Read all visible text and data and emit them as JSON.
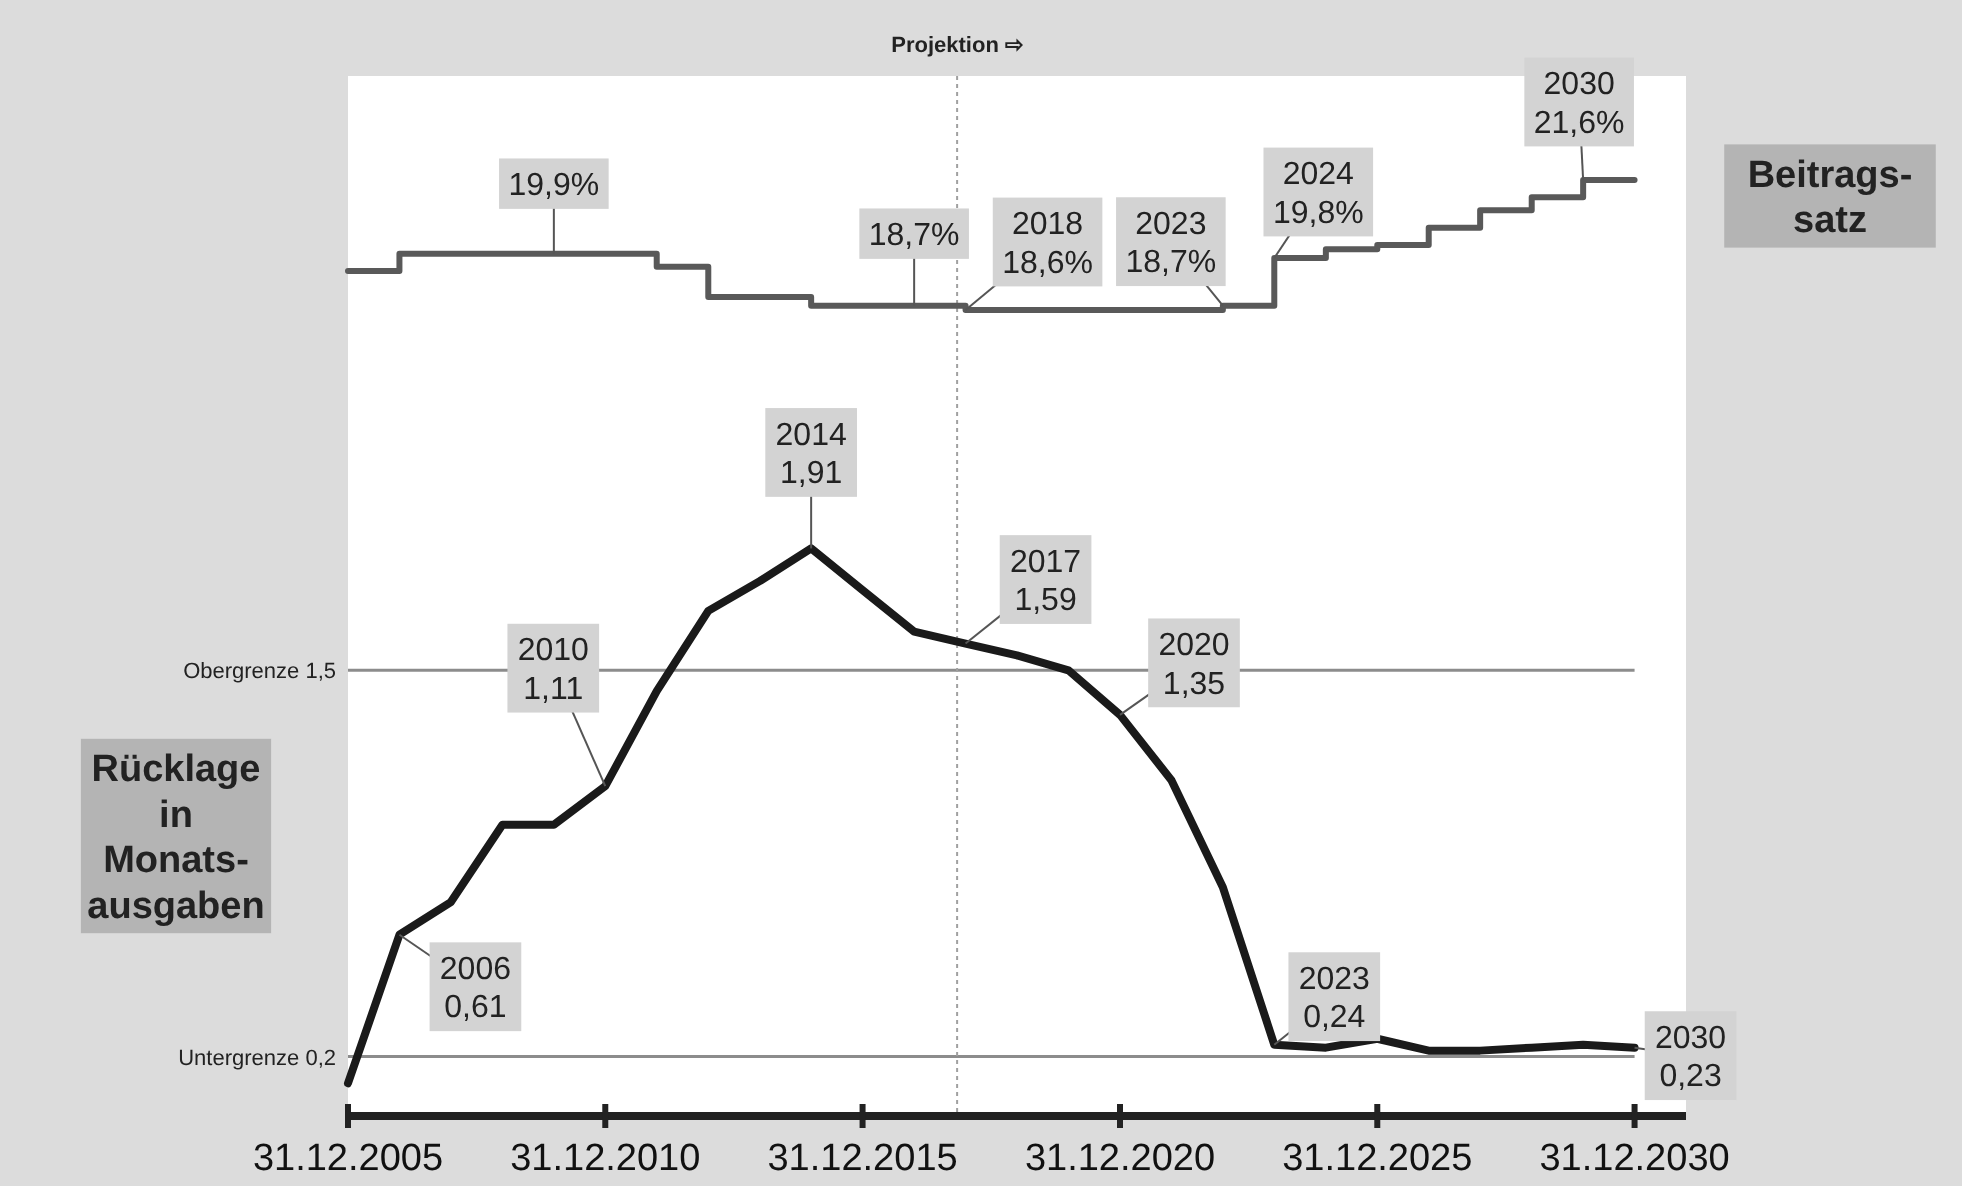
{
  "chart_data": {
    "type": "line",
    "ylabel": "Rücklage\nin\nMonats-\nausgaben",
    "y2label": "Beitrags-\nsatz",
    "x": [
      "2005-12-31",
      "2006-12-31",
      "2007-12-31",
      "2008-12-31",
      "2009-12-31",
      "2010-12-31",
      "2011-12-31",
      "2012-12-31",
      "2013-12-31",
      "2014-12-31",
      "2015-12-31",
      "2016-12-31",
      "2017-12-31",
      "2018-12-31",
      "2019-12-31",
      "2020-12-31",
      "2021-12-31",
      "2022-12-31",
      "2023-12-31",
      "2024-12-31",
      "2025-12-31",
      "2026-12-31",
      "2027-12-31",
      "2028-12-31",
      "2029-12-31",
      "2030-12-31"
    ],
    "xlim": [
      "2005-12-31",
      "2031-12-31"
    ],
    "xticks": [
      {
        "value": "2005-12-31",
        "label": "31.12.2005"
      },
      {
        "value": "2010-12-31",
        "label": "31.12.2010"
      },
      {
        "value": "2015-12-31",
        "label": "31.12.2015"
      },
      {
        "value": "2020-12-31",
        "label": "31.12.2020"
      },
      {
        "value": "2025-12-31",
        "label": "31.12.2025"
      },
      {
        "value": "2030-12-31",
        "label": "31.12.2030"
      }
    ],
    "ylim": [
      0,
      3.5
    ],
    "y2lim": [
      0,
      24
    ],
    "tick_labels": "x",
    "grid": false,
    "series": [
      {
        "color": "#1a1a1a",
        "values": [
          0.11,
          0.61,
          0.72,
          0.98,
          0.98,
          1.11,
          1.43,
          1.7,
          1.8,
          1.91,
          1.77,
          1.63,
          1.59,
          1.55,
          1.5,
          1.35,
          1.13,
          0.77,
          0.24,
          0.23,
          0.26,
          0.22,
          0.22,
          0.23,
          0.24,
          0.23
        ],
        "value_labels": [
          null,
          "2006\n0,61",
          null,
          null,
          null,
          "2010\n1,11",
          null,
          null,
          null,
          "2014\n1,91",
          null,
          null,
          "2017\n1,59",
          null,
          null,
          "2020\n1,35",
          null,
          null,
          "2023\n0,24",
          null,
          null,
          null,
          null,
          null,
          null,
          "2030\n0,23"
        ]
      },
      {
        "type": "step",
        "axis": "y2",
        "color": "#595959",
        "values": [
          19.5,
          19.9,
          19.9,
          19.9,
          19.9,
          19.9,
          19.6,
          18.9,
          18.9,
          18.7,
          18.7,
          18.7,
          18.6,
          18.6,
          18.6,
          18.6,
          18.6,
          18.7,
          19.8,
          20.0,
          20.1,
          20.5,
          20.9,
          21.2,
          21.6,
          21.6
        ],
        "value_labels": [
          null,
          null,
          null,
          null,
          "19,9%",
          null,
          null,
          null,
          null,
          null,
          null,
          "18,7%",
          "2018\n18,6%",
          null,
          null,
          null,
          null,
          "2023\n18,7%",
          "2024\n19,8%",
          null,
          null,
          null,
          null,
          null,
          "2030\n21,6%",
          null
        ]
      }
    ],
    "ref_lines": [
      {
        "axis": "y",
        "value": 1.5,
        "label": "Obergrenze 1,5",
        "color": "#8c8c8c"
      },
      {
        "axis": "y",
        "value": 0.2,
        "label": "Untergrenze 0,2",
        "color": "#8c8c8c"
      },
      {
        "axis": "x",
        "value": "2017-11-01",
        "label": "Projektion ⇨",
        "color": "#a0a0a0",
        "line_style": "dotted"
      }
    ]
  }
}
